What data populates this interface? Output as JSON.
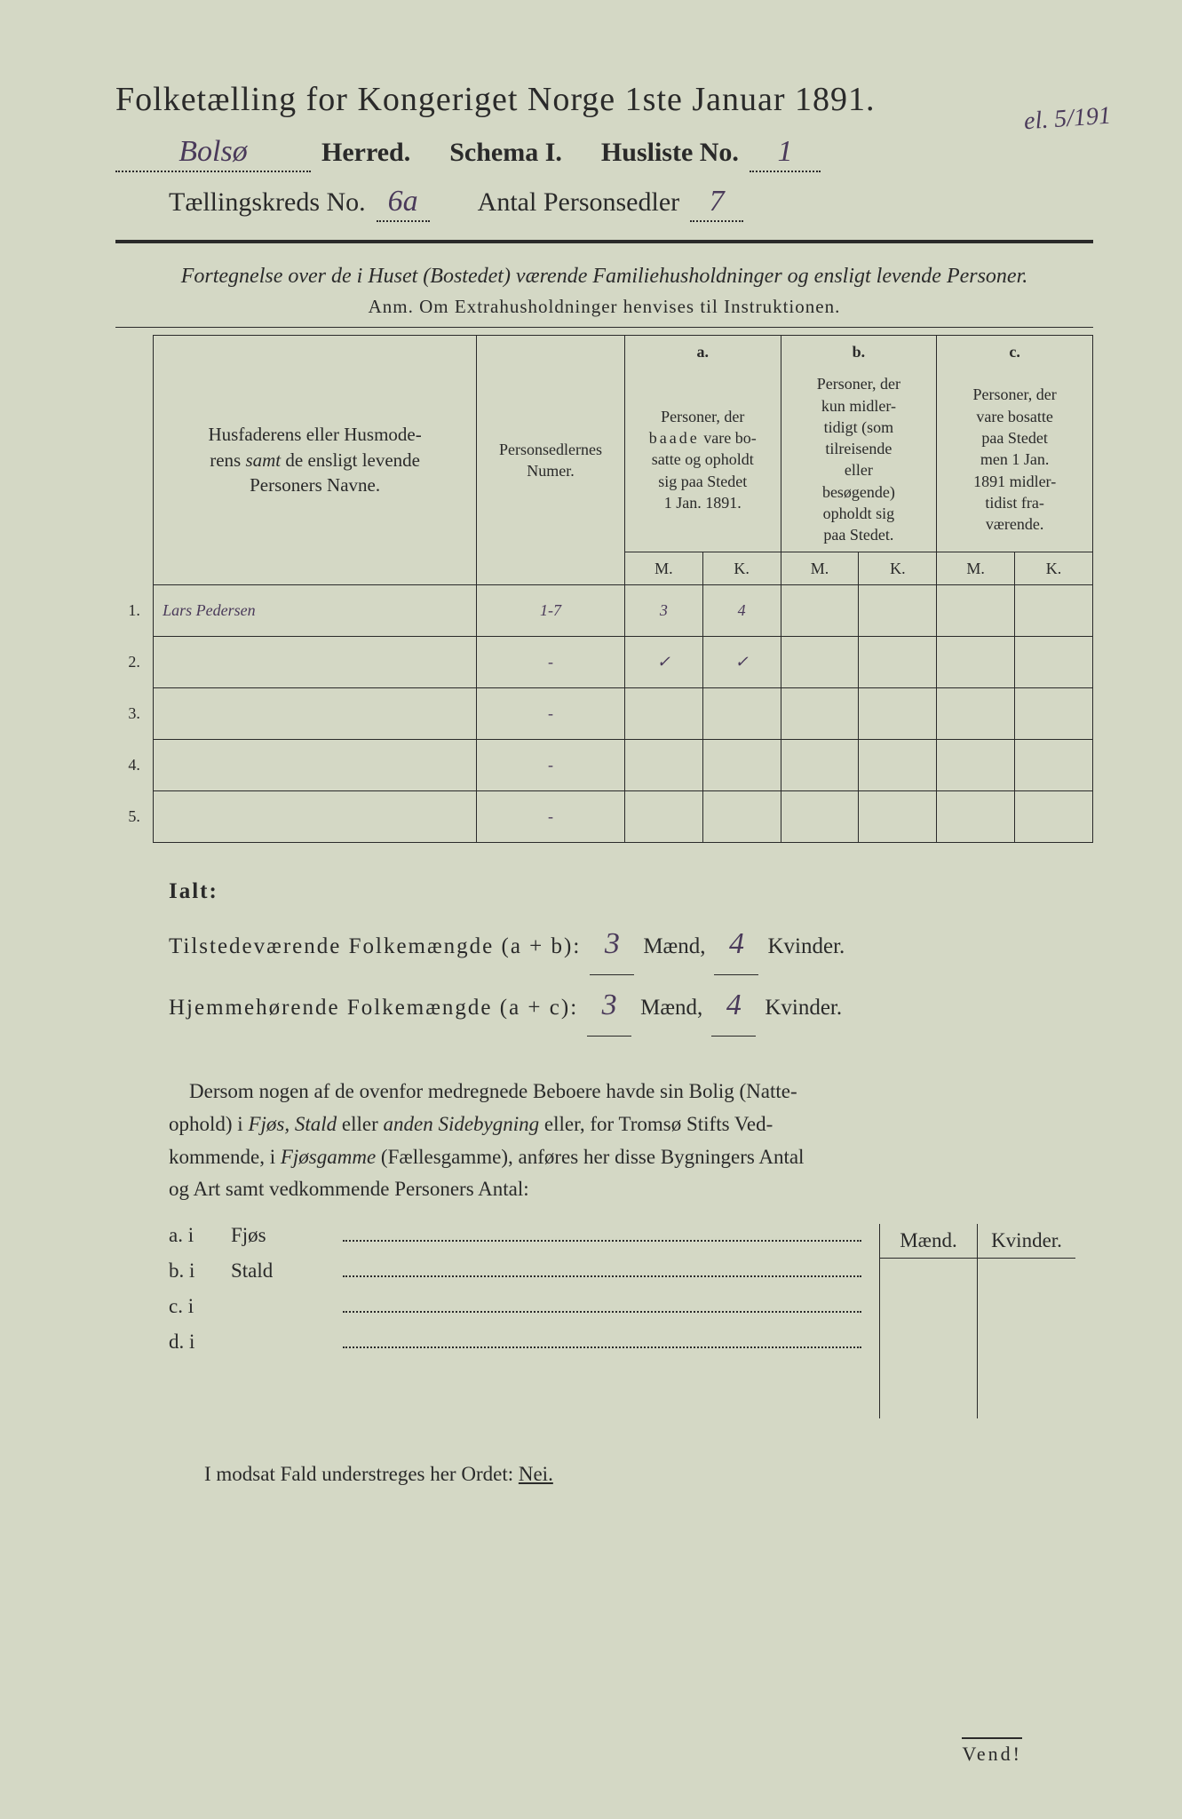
{
  "colors": {
    "page_bg": "#d4d8c5",
    "outer_bg": "#a8a498",
    "ink": "#2a2a2a",
    "handwriting": "#4a3a5a"
  },
  "title": "Folketælling for Kongeriget Norge 1ste Januar 1891.",
  "line2": {
    "herred_value": "Bolsø",
    "herred_label": "Herred.",
    "schema_label": "Schema I.",
    "husliste_label": "Husliste No.",
    "husliste_value": "1",
    "corner_note": "el. 5/191"
  },
  "line3": {
    "kreds_label": "Tællingskreds No.",
    "kreds_value": "6a",
    "antal_label": "Antal Personsedler",
    "antal_value": "7"
  },
  "subtitle": "Fortegnelse over de i Huset (Bostedet) værende Familiehusholdninger og ensligt levende Personer.",
  "anm": "Anm. Om Extrahusholdninger henvises til Instruktionen.",
  "table": {
    "col_name_header": "Husfaderens eller Husmoderens samt de ensligt levende Personers Navne.",
    "col_num_header": "Personsedlernes Numer.",
    "group_a_label": "a.",
    "group_a_text": "Personer, der baade vare bosatte og opholdt sig paa Stedet 1 Jan. 1891.",
    "group_b_label": "b.",
    "group_b_text": "Personer, der kun midlertidigt (som tilreisende eller besøgende) opholdt sig paa Stedet.",
    "group_c_label": "c.",
    "group_c_text": "Personer, der vare bosatte paa Stedet men 1 Jan. 1891 midlertidist fraværende.",
    "m_label": "M.",
    "k_label": "K.",
    "rows": [
      {
        "n": "1.",
        "name": "Lars Pedersen",
        "num": "1-7",
        "a_m": "3",
        "a_k": "4",
        "b_m": "",
        "b_k": "",
        "c_m": "",
        "c_k": ""
      },
      {
        "n": "2.",
        "name": "",
        "num": "-",
        "a_m": "✓",
        "a_k": "✓",
        "b_m": "",
        "b_k": "",
        "c_m": "",
        "c_k": ""
      },
      {
        "n": "3.",
        "name": "",
        "num": "-",
        "a_m": "",
        "a_k": "",
        "b_m": "",
        "b_k": "",
        "c_m": "",
        "c_k": ""
      },
      {
        "n": "4.",
        "name": "",
        "num": "-",
        "a_m": "",
        "a_k": "",
        "b_m": "",
        "b_k": "",
        "c_m": "",
        "c_k": ""
      },
      {
        "n": "5.",
        "name": "",
        "num": "-",
        "a_m": "",
        "a_k": "",
        "b_m": "",
        "b_k": "",
        "c_m": "",
        "c_k": ""
      }
    ]
  },
  "ialt": {
    "heading": "Ialt:",
    "line1_label": "Tilstedeværende Folkemængde (a + b):",
    "line2_label": "Hjemmehørende Folkemængde (a + c):",
    "maend_label": "Mænd,",
    "kvinder_label": "Kvinder.",
    "l1_m": "3",
    "l1_k": "4",
    "l2_m": "3",
    "l2_k": "4"
  },
  "para": "Dersom nogen af de ovenfor medregnede Beboere havde sin Bolig (Natteophold) i Fjøs, Stald eller anden Sidebygning eller, for Tromsø Stifts Vedkommende, i Fjøsgamme (Fællesgamme), anføres her disse Bygningers Antal og Art samt vedkommende Personers Antal:",
  "buildings": {
    "rows": [
      {
        "lab": "a.  i",
        "type": "Fjøs"
      },
      {
        "lab": "b.  i",
        "type": "Stald"
      },
      {
        "lab": "c.  i",
        "type": ""
      },
      {
        "lab": "d.  i",
        "type": ""
      }
    ],
    "m_label": "Mænd.",
    "k_label": "Kvinder."
  },
  "nei_line": "I modsat Fald understreges her Ordet: ",
  "nei_word": "Nei.",
  "vend": "Vend!"
}
